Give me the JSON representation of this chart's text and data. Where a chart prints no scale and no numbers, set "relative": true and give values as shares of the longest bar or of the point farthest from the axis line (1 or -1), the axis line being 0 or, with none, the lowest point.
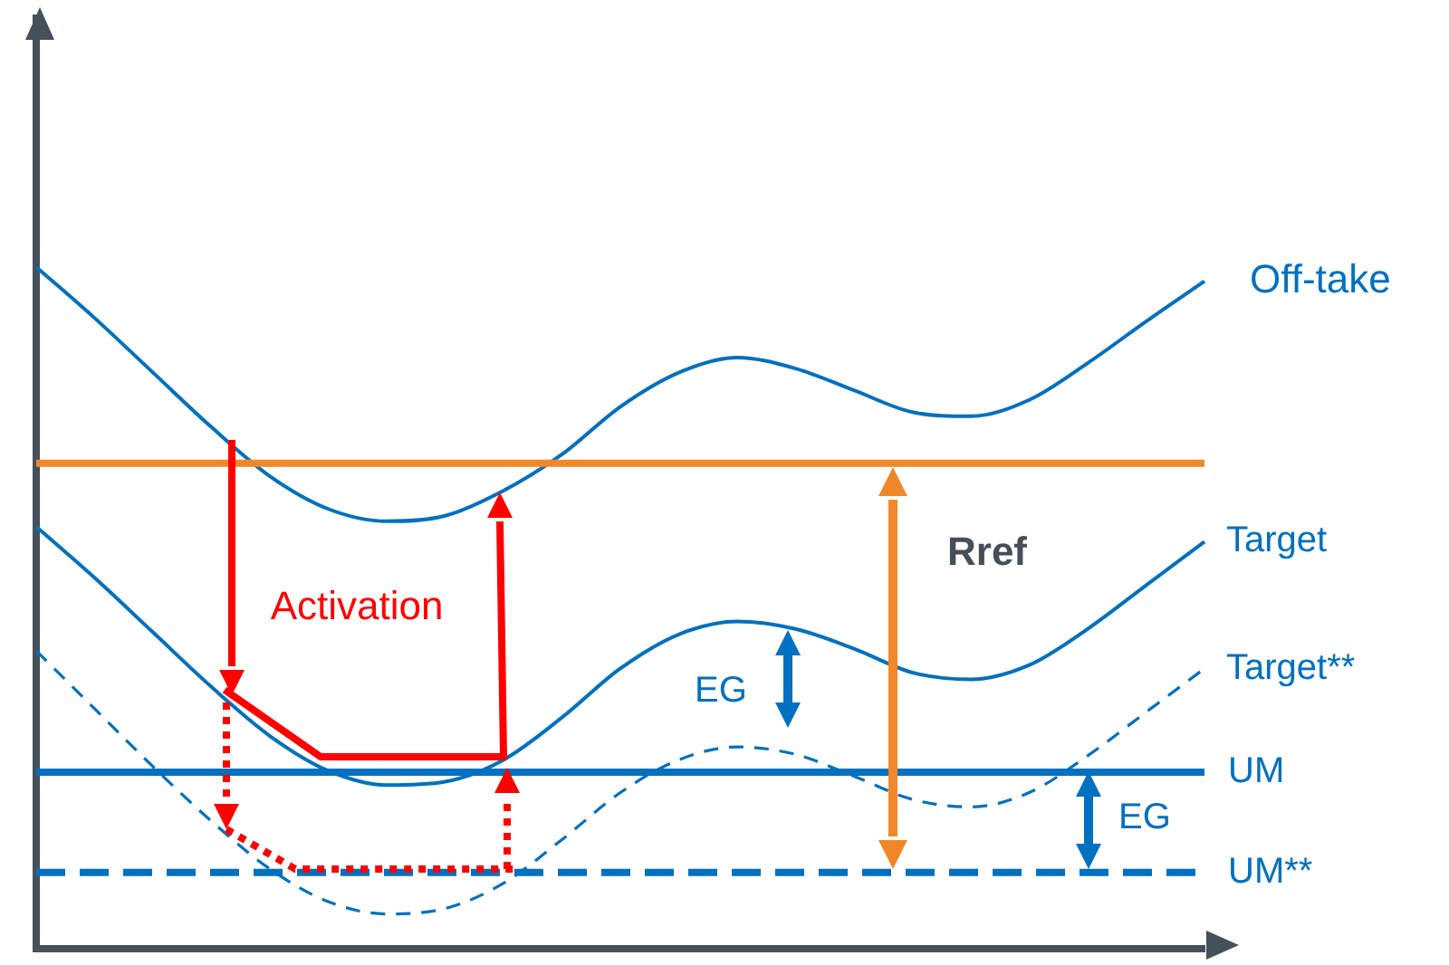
{
  "chart_data": {
    "type": "line",
    "relative": true,
    "legend": false,
    "grid": false,
    "marker": "none",
    "categories": [
      null,
      null,
      null,
      null,
      null,
      null,
      null,
      null,
      null,
      null,
      null,
      null,
      null,
      null,
      null,
      null,
      null,
      null,
      null,
      null,
      null
    ],
    "series": [
      {
        "name": "Off-take",
        "color": "#0070c0",
        "line_style": "solid",
        "values": [
          1.0,
          0.925,
          0.845,
          0.765,
          0.693,
          0.645,
          0.627,
          0.635,
          0.672,
          0.725,
          0.795,
          0.845,
          0.867,
          0.851,
          0.819,
          0.787,
          0.781,
          0.805,
          0.859,
          0.92,
          0.979
        ]
      },
      {
        "name": "Target",
        "color": "#0070c0",
        "line_style": "solid",
        "values": [
          0.619,
          0.544,
          0.464,
          0.384,
          0.312,
          0.261,
          0.24,
          0.245,
          0.277,
          0.339,
          0.411,
          0.461,
          0.48,
          0.469,
          0.44,
          0.405,
          0.395,
          0.416,
          0.469,
          0.533,
          0.597
        ]
      },
      {
        "name": "Target**",
        "color": "#0070c0",
        "line_style": "dashed",
        "values": [
          0.437,
          0.352,
          0.267,
          0.187,
          0.117,
          0.069,
          0.051,
          0.059,
          0.096,
          0.16,
          0.229,
          0.277,
          0.296,
          0.285,
          0.253,
          0.219,
          0.208,
          0.229,
          0.283,
          0.347,
          0.411
        ]
      }
    ],
    "ref_lines": [
      {
        "axis": "y",
        "value": 0.712,
        "label": null,
        "color": "#f0882a",
        "line_style": "solid"
      },
      {
        "axis": "y",
        "value": 0.259,
        "label": "UM",
        "color": "#0070c0",
        "line_style": "solid"
      },
      {
        "axis": "y",
        "value": 0.112,
        "label": "UM**",
        "color": "#0070c0",
        "line_style": "dashed"
      }
    ],
    "annotations": [
      "Activation",
      "Rref",
      "EG",
      "EG"
    ]
  }
}
